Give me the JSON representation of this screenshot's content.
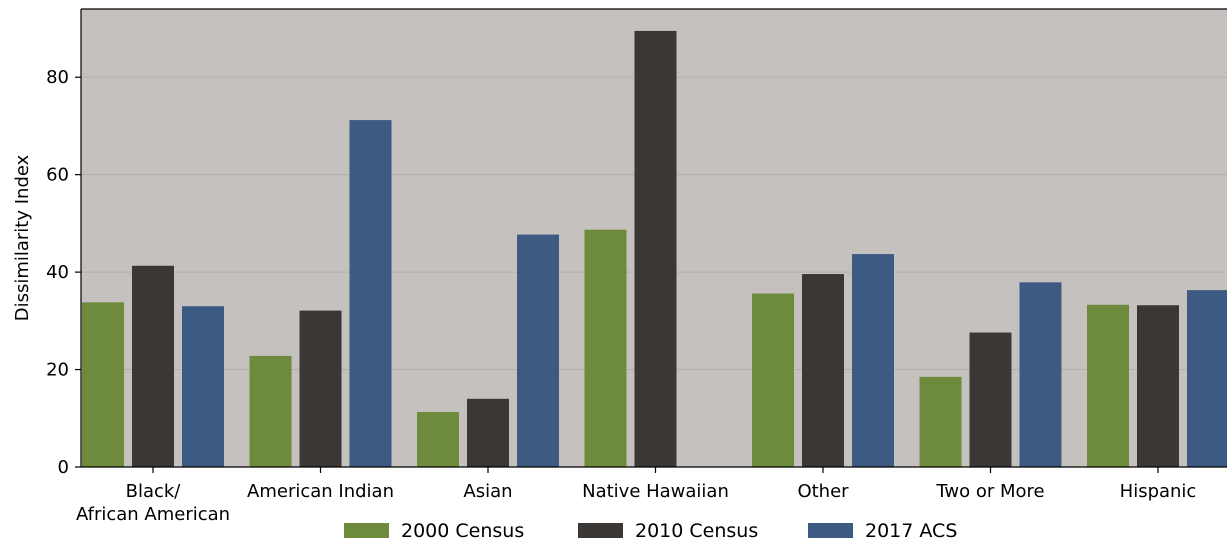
{
  "chart_data": {
    "type": "bar",
    "categories": [
      "Black/\nAfrican American",
      "American Indian",
      "Asian",
      "Native Hawaiian",
      "Other",
      "Two or More",
      "Hispanic"
    ],
    "series": [
      {
        "name": "2000 Census",
        "color": "#6e8b3d",
        "values": [
          33.8,
          22.8,
          11.3,
          48.7,
          35.6,
          18.5,
          33.3
        ]
      },
      {
        "name": "2010 Census",
        "color": "#3b3735",
        "values": [
          41.3,
          32.1,
          14.0,
          89.5,
          39.6,
          27.6,
          33.2
        ]
      },
      {
        "name": "2017 ACS",
        "color": "#3c5a82",
        "values": [
          33.0,
          71.2,
          47.7,
          null,
          43.7,
          37.9,
          36.3
        ]
      }
    ],
    "xlabel": "",
    "ylabel": "Dissimilarity  Index",
    "ylim": [
      0,
      94
    ],
    "yticks": [
      0,
      20,
      40,
      60,
      80
    ],
    "grid": "horizontal",
    "legend": "bottom",
    "plot_background": "#c5c1be"
  }
}
